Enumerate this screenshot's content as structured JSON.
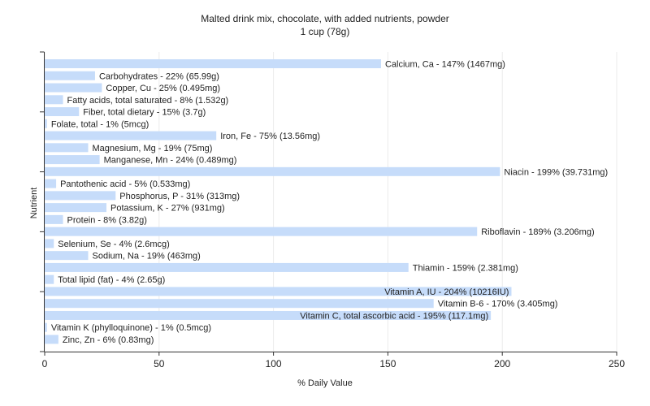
{
  "title": "Malted drink mix, chocolate, with added nutrients, powder",
  "subtitle": "1 cup (78g)",
  "chart_data": {
    "type": "bar",
    "orientation": "horizontal",
    "title": "Malted drink mix, chocolate, with added nutrients, powder",
    "subtitle": "1 cup (78g)",
    "xlabel": "% Daily Value",
    "ylabel": "Nutrient",
    "xlim": [
      0,
      250
    ],
    "xticks": [
      0,
      50,
      100,
      150,
      200,
      250
    ],
    "grid": true,
    "bar_color": "#c6dcfa",
    "categories": [
      "Calcium, Ca",
      "Carbohydrates",
      "Copper, Cu",
      "Fatty acids, total saturated",
      "Fiber, total dietary",
      "Folate, total",
      "Iron, Fe",
      "Magnesium, Mg",
      "Manganese, Mn",
      "Niacin",
      "Pantothenic acid",
      "Phosphorus, P",
      "Potassium, K",
      "Protein",
      "Riboflavin",
      "Selenium, Se",
      "Sodium, Na",
      "Thiamin",
      "Total lipid (fat)",
      "Vitamin A, IU",
      "Vitamin B-6",
      "Vitamin C, total ascorbic acid",
      "Vitamin K (phylloquinone)",
      "Zinc, Zn"
    ],
    "values": [
      147,
      22,
      25,
      8,
      15,
      1,
      75,
      19,
      24,
      199,
      5,
      31,
      27,
      8,
      189,
      4,
      19,
      159,
      4,
      204,
      170,
      195,
      1,
      6
    ],
    "labels": [
      "Calcium, Ca - 147% (1467mg)",
      "Carbohydrates - 22% (65.99g)",
      "Copper, Cu - 25% (0.495mg)",
      "Fatty acids, total saturated - 8% (1.532g)",
      "Fiber, total dietary - 15% (3.7g)",
      "Folate, total - 1% (5mcg)",
      "Iron, Fe - 75% (13.56mg)",
      "Magnesium, Mg - 19% (75mg)",
      "Manganese, Mn - 24% (0.489mg)",
      "Niacin - 199% (39.731mg)",
      "Pantothenic acid - 5% (0.533mg)",
      "Phosphorus, P - 31% (313mg)",
      "Potassium, K - 27% (931mg)",
      "Protein - 8% (3.82g)",
      "Riboflavin - 189% (3.206mg)",
      "Selenium, Se - 4% (2.6mcg)",
      "Sodium, Na - 19% (463mg)",
      "Thiamin - 159% (2.381mg)",
      "Total lipid (fat) - 4% (2.65g)",
      "Vitamin A, IU - 204% (10216IU)",
      "Vitamin B-6 - 170% (3.405mg)",
      "Vitamin C, total ascorbic acid - 195% (117.1mg)",
      "Vitamin K (phylloquinone) - 1% (0.5mcg)",
      "Zinc, Zn - 6% (0.83mg)"
    ]
  }
}
